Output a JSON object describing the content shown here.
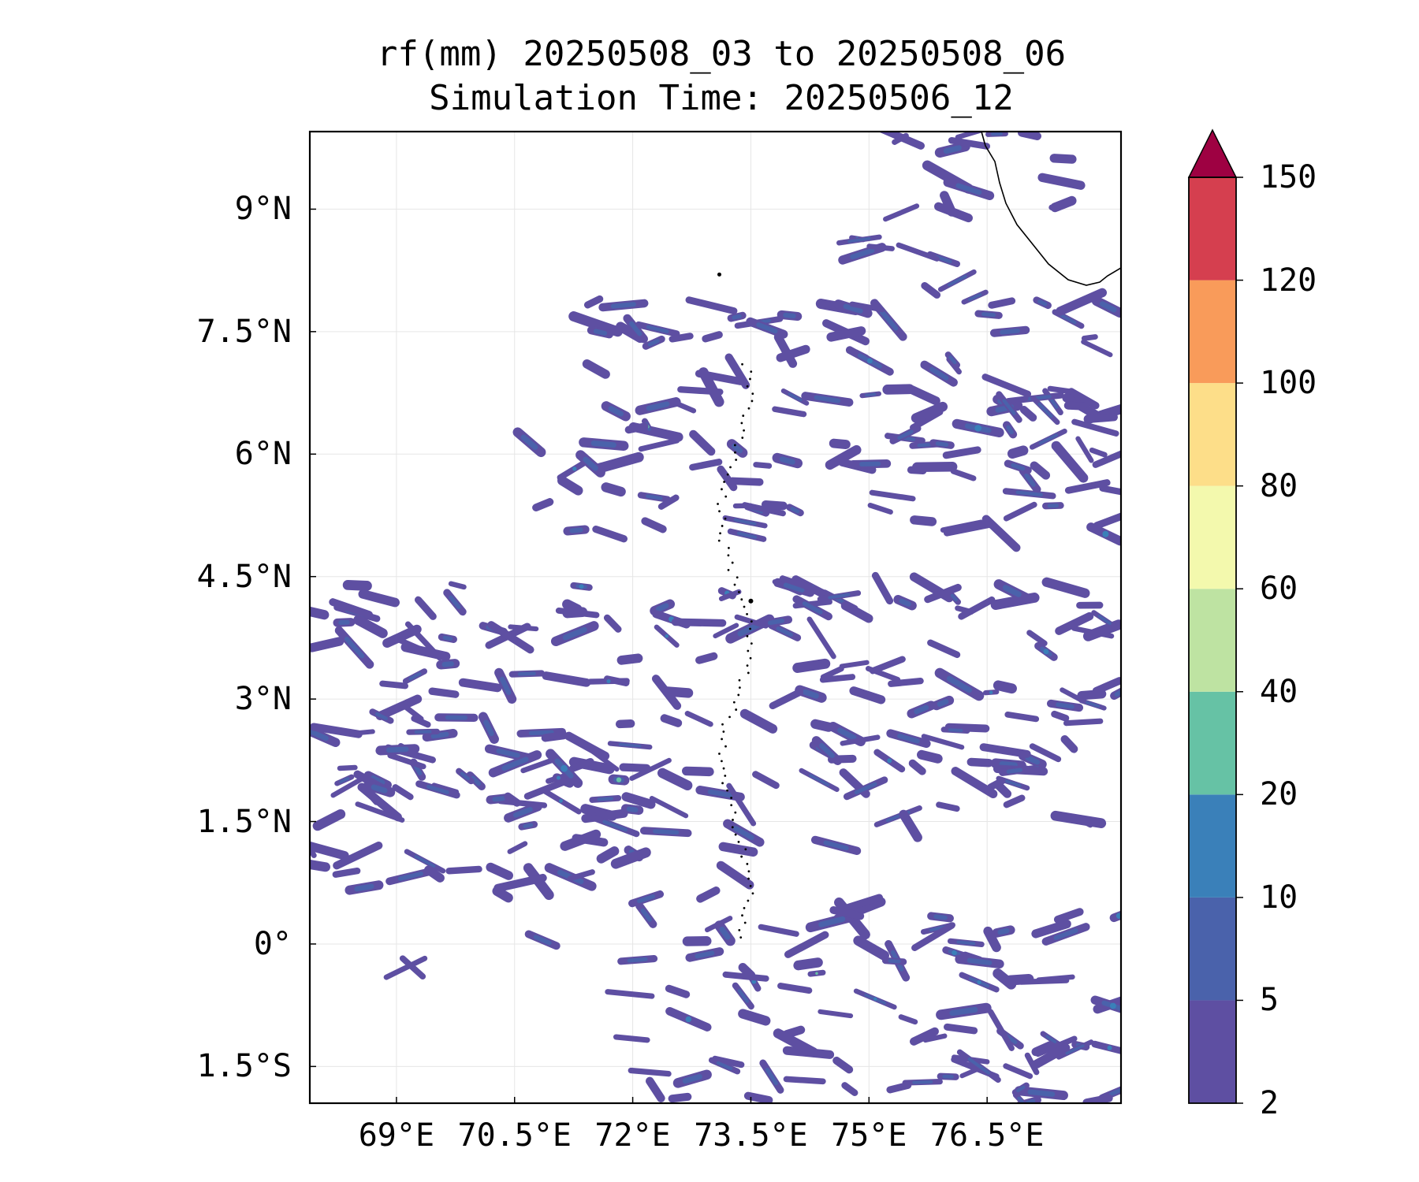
{
  "title_line1": "rf(mm) 20250508_03 to 20250508_06",
  "title_line2": "Simulation Time: 20250506_12",
  "map": {
    "lon_range": [
      67.9,
      78.2
    ],
    "lat_range": [
      -1.95,
      9.95
    ],
    "gridlines": true,
    "lon_ticks": [
      {
        "value": 69.0,
        "label": "69°E"
      },
      {
        "value": 70.5,
        "label": "70.5°E"
      },
      {
        "value": 72.0,
        "label": "72°E"
      },
      {
        "value": 73.5,
        "label": "73.5°E"
      },
      {
        "value": 75.0,
        "label": "75°E"
      },
      {
        "value": 76.5,
        "label": "76.5°E"
      }
    ],
    "lat_ticks": [
      {
        "value": 9.0,
        "label": "9°N"
      },
      {
        "value": 7.5,
        "label": "7.5°N"
      },
      {
        "value": 6.0,
        "label": "6°N"
      },
      {
        "value": 4.5,
        "label": "4.5°N"
      },
      {
        "value": 3.0,
        "label": "3°N"
      },
      {
        "value": 1.5,
        "label": "1.5°N"
      },
      {
        "value": 0.0,
        "label": "0°"
      },
      {
        "value": -1.5,
        "label": "1.5°S"
      }
    ],
    "coastline_icon": "india-southwest-coast",
    "islands_icon": "maldives-atolls"
  },
  "colorbar": {
    "levels": [
      "2",
      "5",
      "10",
      "20",
      "40",
      "60",
      "80",
      "100",
      "120",
      "150"
    ],
    "colors": [
      "#5e4fa2",
      "#4a62ab",
      "#3a80b9",
      "#66c2a5",
      "#bee3a2",
      "#f3f9ad",
      "#fdde89",
      "#f99b5a",
      "#d53f4f"
    ],
    "extend_color": "#9e0142",
    "extend": "max"
  },
  "rain_bands": [
    {
      "lat_min": 4.9,
      "lat_max": 7.9,
      "lon_min": 71.5,
      "lon_max": 78.2,
      "density": 1.0
    },
    {
      "lat_min": 5.0,
      "lat_max": 6.2,
      "lon_min": 70.3,
      "lon_max": 71.5,
      "density": 0.6
    },
    {
      "lat_min": 7.9,
      "lat_max": 9.95,
      "lon_min": 74.8,
      "lon_max": 78.0,
      "density": 0.6
    },
    {
      "lat_min": 1.9,
      "lat_max": 4.4,
      "lon_min": 67.9,
      "lon_max": 78.2,
      "density": 1.0
    },
    {
      "lat_min": 0.6,
      "lat_max": 2.2,
      "lon_min": 67.9,
      "lon_max": 73.6,
      "density": 1.0
    },
    {
      "lat_min": 1.2,
      "lat_max": 2.0,
      "lon_min": 73.6,
      "lon_max": 78.0,
      "density": 0.5
    },
    {
      "lat_min": -1.95,
      "lat_max": 0.6,
      "lon_min": 71.9,
      "lon_max": 78.2,
      "density": 0.9
    },
    {
      "lat_min": -0.3,
      "lat_max": 0.2,
      "lon_min": 68.5,
      "lon_max": 71.0,
      "density": 0.4
    }
  ]
}
